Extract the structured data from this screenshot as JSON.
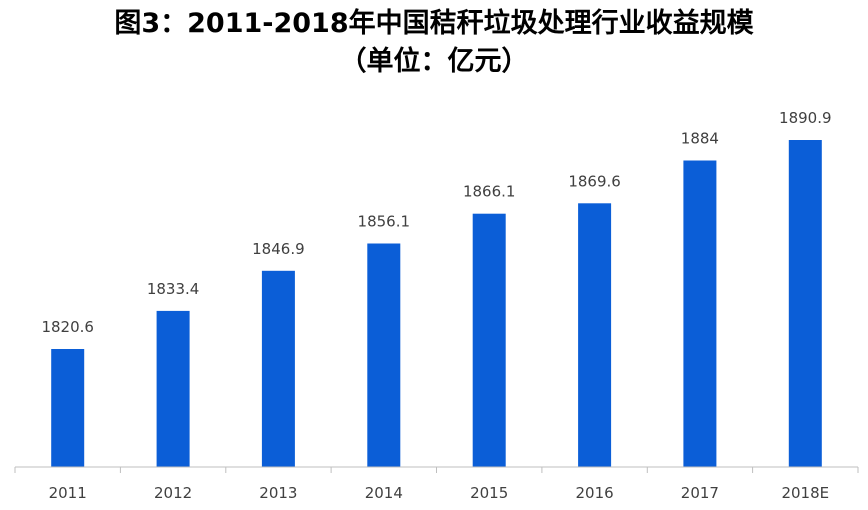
{
  "header": {
    "title": "图3：2011-2018年中国秸秆垃圾处理行业收益规模",
    "subtitle": "（单位：亿元）"
  },
  "colors": {
    "bar": "#0B5ED7",
    "axis": "#BFBFBF",
    "label": "#404040"
  },
  "chart_data": {
    "type": "bar",
    "title": "图3：2011-2018年中国秸秆垃圾处理行业收益规模",
    "subtitle": "（单位：亿元）",
    "xlabel": "",
    "ylabel": "",
    "categories": [
      "2011",
      "2012",
      "2013",
      "2014",
      "2015",
      "2016",
      "2017",
      "2018E"
    ],
    "values": [
      1820.6,
      1833.4,
      1846.9,
      1856.1,
      1866.1,
      1869.6,
      1884,
      1890.9
    ],
    "value_labels": [
      "1820.6",
      "1833.4",
      "1846.9",
      "1856.1",
      "1866.1",
      "1869.6",
      "1884",
      "1890.9"
    ],
    "ylim": [
      1800,
      1900
    ],
    "grid": false,
    "legend": "none",
    "data_labels": true
  }
}
